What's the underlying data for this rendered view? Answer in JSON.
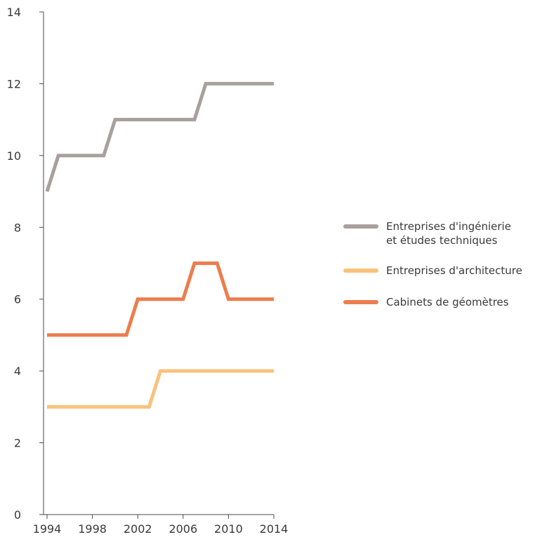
{
  "chart_data": {
    "type": "line",
    "title": "",
    "xlabel": "",
    "ylabel": "",
    "xlim": [
      1994,
      2014
    ],
    "ylim": [
      0,
      14
    ],
    "x_ticks": [
      "1994",
      "1998",
      "2002",
      "2006",
      "2010",
      "2014"
    ],
    "y_ticks": [
      "0",
      "2",
      "4",
      "6",
      "8",
      "10",
      "12",
      "14"
    ],
    "grid": false,
    "legend_position": "right",
    "x": [
      1994,
      1995,
      1996,
      1997,
      1998,
      1999,
      2000,
      2001,
      2002,
      2003,
      2004,
      2005,
      2006,
      2007,
      2008,
      2009,
      2010,
      2011,
      2012,
      2013,
      2014
    ],
    "series": [
      {
        "name": "Entreprises d'ingénierie\net études techniques",
        "legend_lines": [
          "Entreprises d'ingénierie",
          "et études techniques"
        ],
        "color": "#a8a09d",
        "values": [
          9,
          10,
          10,
          10,
          10,
          10,
          11,
          11,
          11,
          11,
          11,
          11,
          11,
          11,
          12,
          12,
          12,
          12,
          12,
          12,
          12
        ]
      },
      {
        "name": "Entreprises d'architecture",
        "legend_lines": [
          "Entreprises d'architecture"
        ],
        "color": "#f8c27c",
        "values": [
          3,
          3,
          3,
          3,
          3,
          3,
          3,
          3,
          3,
          3,
          4,
          4,
          4,
          4,
          4,
          4,
          4,
          4,
          4,
          4,
          4
        ]
      },
      {
        "name": "Cabinets de géomètres",
        "legend_lines": [
          "Cabinets de géomètres"
        ],
        "color": "#ec7d4e",
        "values": [
          5,
          5,
          5,
          5,
          5,
          5,
          5,
          5,
          6,
          6,
          6,
          6,
          6,
          7,
          7,
          7,
          6,
          6,
          6,
          6,
          6
        ]
      }
    ]
  }
}
